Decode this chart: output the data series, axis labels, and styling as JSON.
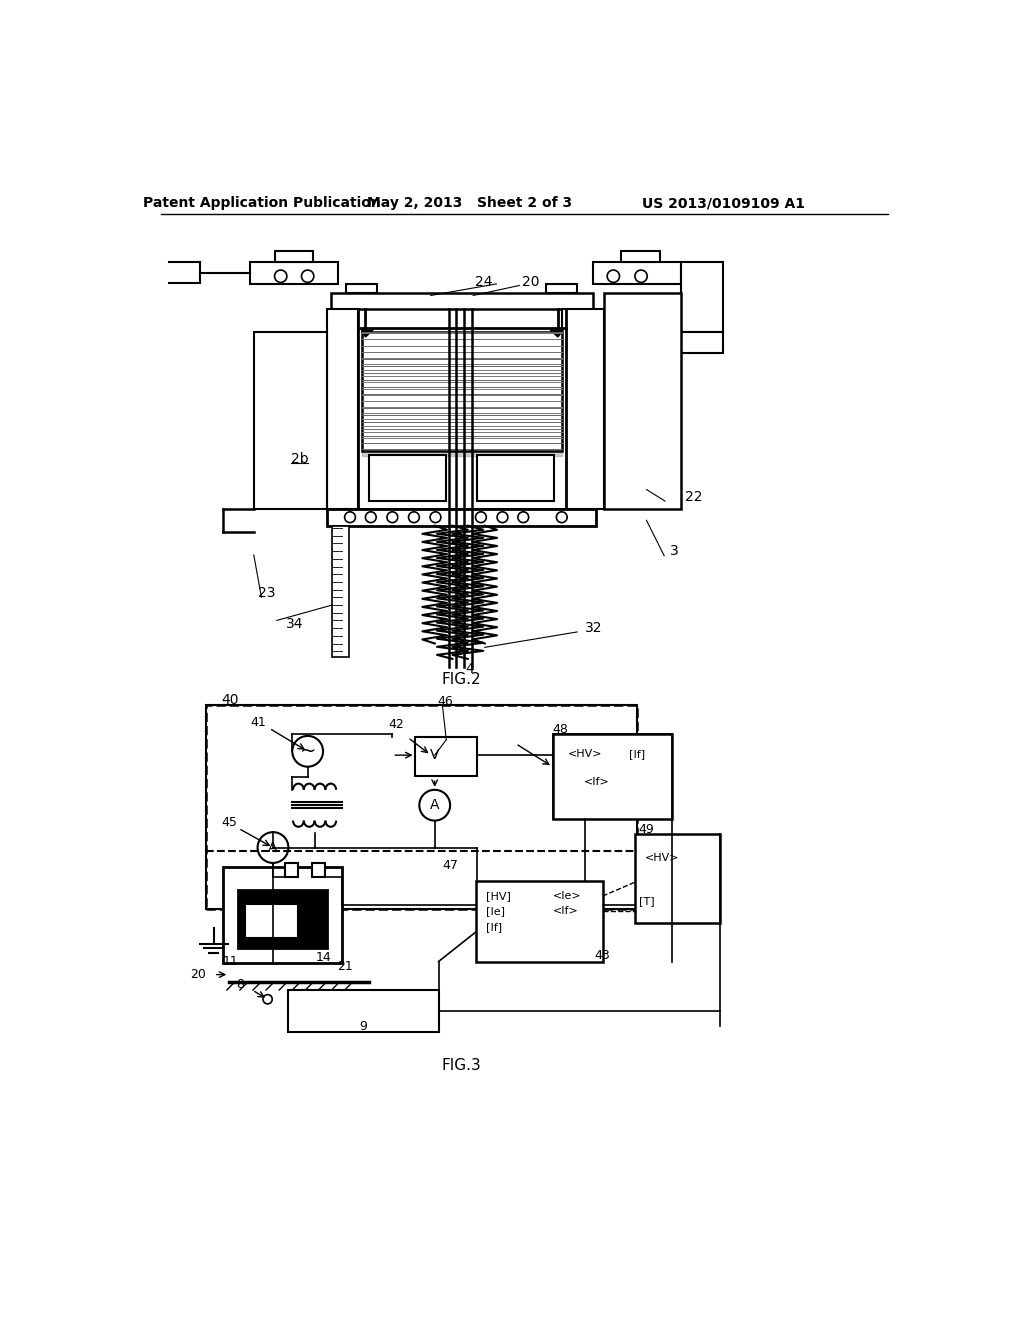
{
  "header_left": "Patent Application Publication",
  "header_mid": "May 2, 2013   Sheet 2 of 3",
  "header_right": "US 2013/0109109 A1",
  "bg_color": "#ffffff"
}
